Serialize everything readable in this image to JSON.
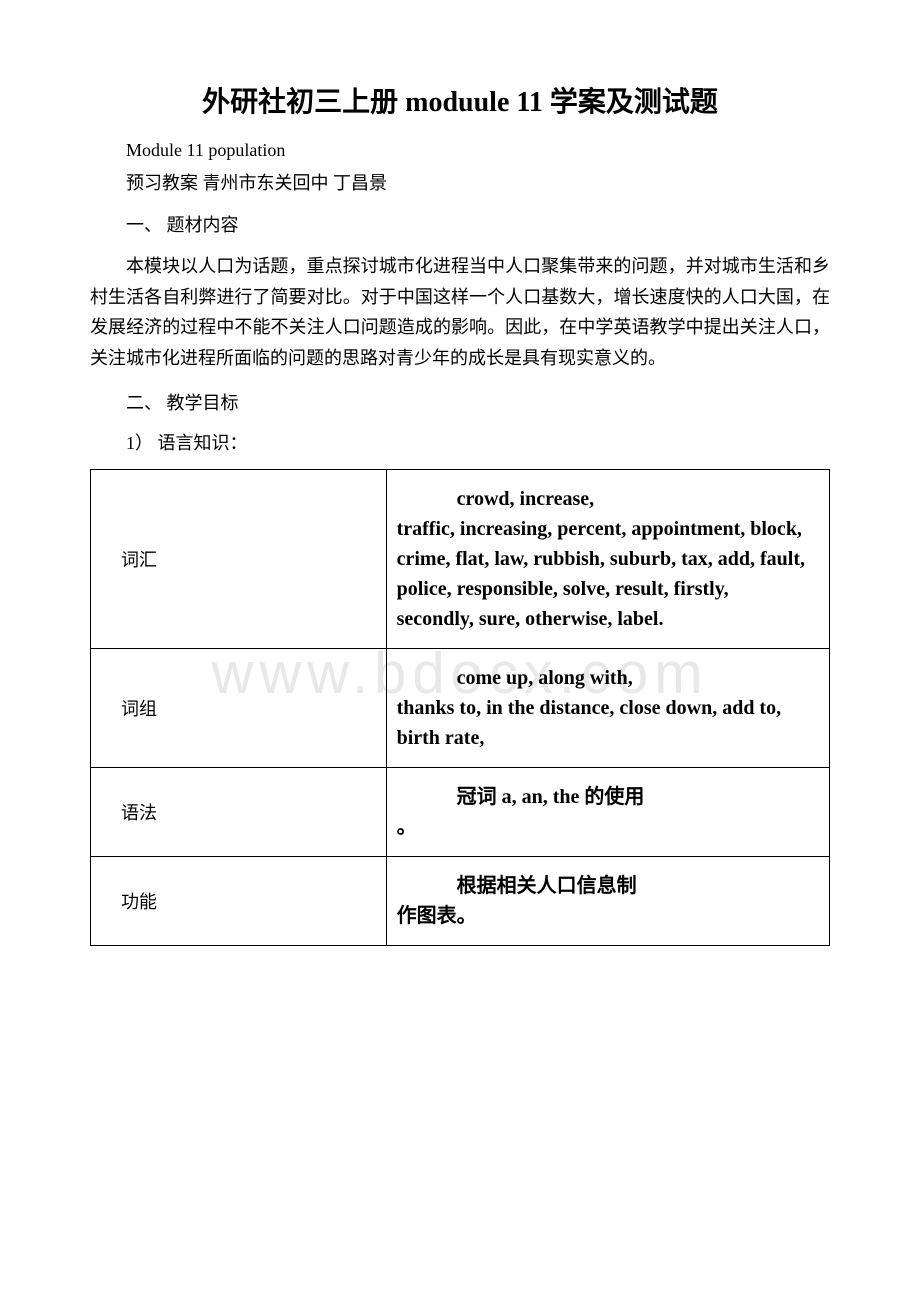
{
  "watermark": "www.bdocx.com",
  "title": "外研社初三上册 moduule 11 学案及测试题",
  "subtitle": "Module 11 population",
  "author_line": "预习教案 青州市东关回中 丁昌景",
  "section1": {
    "heading": "一、 题材内容",
    "body": "本模块以人口为话题，重点探讨城市化进程当中人口聚集带来的问题，并对城市生活和乡村生活各自利弊进行了简要对比。对于中国这样一个人口基数大，增长速度快的人口大国，在发展经济的过程中不能不关注人口问题造成的影响。因此，在中学英语教学中提出关注人口，关注城市化进程所面临的问题的思路对青少年的成长是具有现实意义的。"
  },
  "section2": {
    "heading": "二、 教学目标",
    "item1": "1） 语言知识："
  },
  "table": {
    "rows": [
      {
        "label": "词汇",
        "content_first": "crowd, increase,",
        "content_rest": "traffic, increasing, percent, appointment, block, crime, flat, law, rubbish, suburb, tax, add, fault, police, responsible, solve, result, firstly, secondly, sure, otherwise, label."
      },
      {
        "label": "词组",
        "content_first": "come up, along with,",
        "content_rest": "thanks to, in the distance, close down, add to, birth rate,"
      },
      {
        "label": "语法",
        "content_first": "冠词 a, an, the 的使用",
        "content_rest": "。"
      },
      {
        "label": "功能",
        "content_first": "根据相关人口信息制",
        "content_rest": "作图表。"
      }
    ]
  }
}
